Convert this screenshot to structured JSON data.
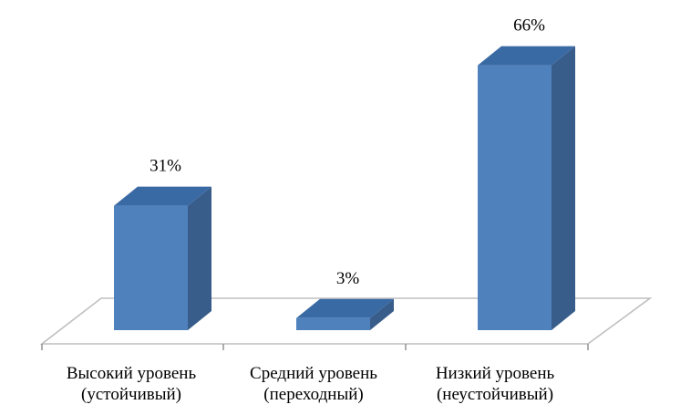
{
  "chart_data": {
    "type": "bar",
    "categories": [
      [
        "Высокий уровень",
        "(устойчивый)"
      ],
      [
        "Средний уровень",
        "(переходный)"
      ],
      [
        "Низкий уровень",
        "(неустойчивый)"
      ]
    ],
    "values": [
      31,
      3,
      66
    ],
    "data_labels": [
      "31%",
      "3%",
      "66%"
    ],
    "unit": "%",
    "title": "",
    "xlabel": "",
    "ylabel": "",
    "ylim": [
      0,
      70
    ],
    "grid": false,
    "legend": "none",
    "bar_style": "3d",
    "colors": {
      "bar_front": "#4f81bd",
      "bar_top": "#3a6aa4",
      "bar_side": "#385d8a",
      "floor_line": "#bfbfbf",
      "axis_line": "#8c8c8c"
    }
  }
}
